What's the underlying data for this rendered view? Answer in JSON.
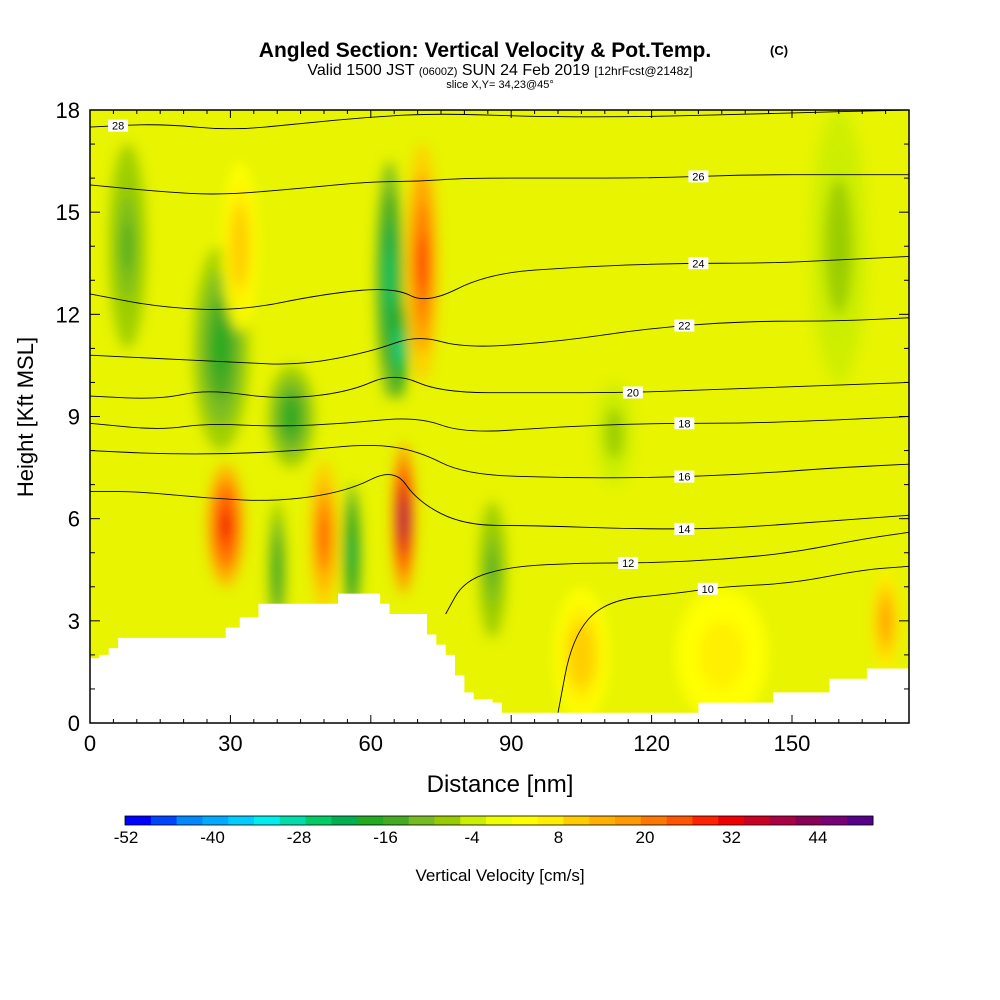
{
  "chart_data": {
    "type": "heatmap",
    "title": "Angled Section: Vertical Velocity & Pot.Temp.",
    "title_unit": "(C)",
    "subtitle": {
      "valid_prefix": "Valid 1500 JST",
      "utc": "(0600Z)",
      "date": "SUN 24 Feb 2019",
      "forecast": "[12hrFcst@2148z]",
      "slice": "slice X,Y= 34,23@45°"
    },
    "xlabel": "Distance [nm]",
    "ylabel": "Height [Kft MSL]",
    "xlim": [
      0,
      175
    ],
    "ylim": [
      0,
      18
    ],
    "x_ticks": [
      0,
      30,
      60,
      90,
      120,
      150
    ],
    "y_ticks": [
      0,
      3,
      6,
      9,
      12,
      15,
      18
    ],
    "colorbar": {
      "label": "Vertical Velocity [cm/s]",
      "tick_labels": [
        -52,
        -40,
        -28,
        -16,
        -4,
        8,
        20,
        32,
        44
      ],
      "colors": [
        "#0000ff",
        "#0044ff",
        "#0088ff",
        "#00aaff",
        "#00ccff",
        "#00eeee",
        "#00ddaa",
        "#00cc66",
        "#00b050",
        "#22aa22",
        "#44aa22",
        "#77bb22",
        "#99cc00",
        "#ccee00",
        "#eeff00",
        "#ffff00",
        "#ffee00",
        "#ffcc00",
        "#ffb000",
        "#ff9900",
        "#ff7700",
        "#ff5500",
        "#ff2200",
        "#ee0000",
        "#cc0022",
        "#aa0044",
        "#880055",
        "#770077",
        "#550088"
      ]
    },
    "terrain_profile": [
      [
        0,
        1.9
      ],
      [
        2,
        2
      ],
      [
        4,
        2.2
      ],
      [
        6,
        2.5
      ],
      [
        24,
        2.5
      ],
      [
        29,
        2.8
      ],
      [
        32,
        3.1
      ],
      [
        36,
        3.5
      ],
      [
        52,
        3.5
      ],
      [
        53,
        3.8
      ],
      [
        58,
        3.8
      ],
      [
        62,
        3.5
      ],
      [
        64,
        3.2
      ],
      [
        70,
        3.2
      ],
      [
        72,
        2.6
      ],
      [
        74,
        2.3
      ],
      [
        76,
        2
      ],
      [
        78,
        1.4
      ],
      [
        80,
        0.9
      ],
      [
        82,
        0.7
      ],
      [
        86,
        0.6
      ],
      [
        88,
        0.3
      ],
      [
        128,
        0.3
      ],
      [
        130,
        0.6
      ],
      [
        144,
        0.6
      ],
      [
        146,
        0.9
      ],
      [
        154,
        0.9
      ],
      [
        158,
        1.3
      ],
      [
        164,
        1.3
      ],
      [
        166,
        1.6
      ],
      [
        175,
        1.6
      ]
    ],
    "velocity_features": [
      {
        "x": 29,
        "y": 5.8,
        "sx": 4,
        "sy": 1.8,
        "value": 34
      },
      {
        "x": 50,
        "y": 5.5,
        "sx": 3,
        "sy": 2.2,
        "value": 26
      },
      {
        "x": 67,
        "y": 6.0,
        "sx": 2.5,
        "sy": 2.2,
        "value": 44
      },
      {
        "x": 71,
        "y": 13.5,
        "sx": 3.5,
        "sy": 3.5,
        "value": 28
      },
      {
        "x": 64,
        "y": 13.0,
        "sx": 3.0,
        "sy": 3.5,
        "value": -26
      },
      {
        "x": 66,
        "y": 11.0,
        "sx": 2.0,
        "sy": 1.5,
        "value": -30
      },
      {
        "x": 40,
        "y": 4.5,
        "sx": 2.0,
        "sy": 2.0,
        "value": -20
      },
      {
        "x": 56,
        "y": 5.0,
        "sx": 2.0,
        "sy": 2.0,
        "value": -22
      },
      {
        "x": 28,
        "y": 11.0,
        "sx": 6.0,
        "sy": 3.0,
        "value": -18
      },
      {
        "x": 43,
        "y": 9.0,
        "sx": 5.0,
        "sy": 1.5,
        "value": -18
      },
      {
        "x": 8,
        "y": 14.0,
        "sx": 4.0,
        "sy": 3.0,
        "value": -14
      },
      {
        "x": 86,
        "y": 4.5,
        "sx": 3.0,
        "sy": 2.0,
        "value": -14
      },
      {
        "x": 105,
        "y": 2.0,
        "sx": 6.0,
        "sy": 2.0,
        "value": 12
      },
      {
        "x": 135,
        "y": 2.0,
        "sx": 10.0,
        "sy": 2.0,
        "value": 8
      },
      {
        "x": 170,
        "y": 3.0,
        "sx": 3.0,
        "sy": 1.5,
        "value": 18
      },
      {
        "x": 160,
        "y": 14.0,
        "sx": 6.0,
        "sy": 4.0,
        "value": -8
      },
      {
        "x": 32,
        "y": 14.0,
        "sx": 4.0,
        "sy": 2.5,
        "value": 12
      },
      {
        "x": 112,
        "y": 8.5,
        "sx": 4.0,
        "sy": 1.5,
        "value": -8
      }
    ],
    "isentropes": [
      {
        "value": 10,
        "label": "10",
        "label_x": 132,
        "points": [
          [
            100,
            0.3
          ],
          [
            103,
            2.5
          ],
          [
            110,
            3.6
          ],
          [
            125,
            3.8
          ],
          [
            135,
            4.0
          ],
          [
            150,
            4.1
          ],
          [
            165,
            4.5
          ],
          [
            175,
            4.6
          ]
        ]
      },
      {
        "value": 12,
        "label": "12",
        "label_x": 115,
        "points": [
          [
            76,
            3.2
          ],
          [
            80,
            4.2
          ],
          [
            90,
            4.6
          ],
          [
            105,
            4.7
          ],
          [
            120,
            4.7
          ],
          [
            135,
            4.8
          ],
          [
            150,
            5.0
          ],
          [
            165,
            5.4
          ],
          [
            175,
            5.6
          ]
        ]
      },
      {
        "value": 14,
        "label": "14",
        "label_x": 127,
        "points": [
          [
            0,
            6.8
          ],
          [
            10,
            6.8
          ],
          [
            25,
            6.6
          ],
          [
            40,
            6.5
          ],
          [
            55,
            6.8
          ],
          [
            65,
            7.5
          ],
          [
            70,
            6.5
          ],
          [
            80,
            5.8
          ],
          [
            95,
            5.8
          ],
          [
            115,
            5.7
          ],
          [
            135,
            5.7
          ],
          [
            155,
            5.9
          ],
          [
            175,
            6.1
          ]
        ]
      },
      {
        "value": 16,
        "label": "16",
        "label_x": 127,
        "points": [
          [
            0,
            8.0
          ],
          [
            15,
            7.9
          ],
          [
            30,
            7.9
          ],
          [
            45,
            8.0
          ],
          [
            60,
            8.2
          ],
          [
            70,
            8.0
          ],
          [
            80,
            7.3
          ],
          [
            100,
            7.2
          ],
          [
            120,
            7.2
          ],
          [
            140,
            7.3
          ],
          [
            160,
            7.5
          ],
          [
            175,
            7.6
          ]
        ]
      },
      {
        "value": 18,
        "label": "18",
        "label_x": 127,
        "points": [
          [
            0,
            8.8
          ],
          [
            15,
            8.6
          ],
          [
            25,
            8.8
          ],
          [
            40,
            8.7
          ],
          [
            55,
            8.8
          ],
          [
            70,
            9.0
          ],
          [
            80,
            8.5
          ],
          [
            100,
            8.7
          ],
          [
            120,
            8.8
          ],
          [
            140,
            8.8
          ],
          [
            160,
            8.9
          ],
          [
            175,
            9.0
          ]
        ]
      },
      {
        "value": 20,
        "label": "20",
        "label_x": 116,
        "points": [
          [
            0,
            9.6
          ],
          [
            15,
            9.5
          ],
          [
            25,
            9.8
          ],
          [
            40,
            9.5
          ],
          [
            55,
            9.7
          ],
          [
            65,
            10.3
          ],
          [
            75,
            9.7
          ],
          [
            95,
            9.7
          ],
          [
            115,
            9.7
          ],
          [
            135,
            9.8
          ],
          [
            155,
            9.9
          ],
          [
            175,
            10.0
          ]
        ]
      },
      {
        "value": 22,
        "label": "22",
        "label_x": 127,
        "points": [
          [
            0,
            10.8
          ],
          [
            15,
            10.7
          ],
          [
            30,
            10.6
          ],
          [
            45,
            10.5
          ],
          [
            60,
            10.9
          ],
          [
            70,
            11.4
          ],
          [
            80,
            11.0
          ],
          [
            100,
            11.2
          ],
          [
            120,
            11.6
          ],
          [
            140,
            11.8
          ],
          [
            160,
            11.8
          ],
          [
            175,
            11.9
          ]
        ]
      },
      {
        "value": 24,
        "label": "24",
        "label_x": 130,
        "points": [
          [
            0,
            12.6
          ],
          [
            15,
            12.2
          ],
          [
            32,
            12.1
          ],
          [
            50,
            12.6
          ],
          [
            65,
            12.8
          ],
          [
            72,
            12.3
          ],
          [
            85,
            13.2
          ],
          [
            105,
            13.4
          ],
          [
            125,
            13.5
          ],
          [
            145,
            13.5
          ],
          [
            160,
            13.6
          ],
          [
            175,
            13.7
          ]
        ]
      },
      {
        "value": 26,
        "label": "26",
        "label_x": 130,
        "points": [
          [
            0,
            15.8
          ],
          [
            15,
            15.6
          ],
          [
            28,
            15.5
          ],
          [
            45,
            15.7
          ],
          [
            60,
            15.9
          ],
          [
            70,
            15.9
          ],
          [
            80,
            16.0
          ],
          [
            100,
            16.0
          ],
          [
            120,
            16.0
          ],
          [
            140,
            16.1
          ],
          [
            160,
            16.1
          ],
          [
            175,
            16.1
          ]
        ]
      },
      {
        "value": 28,
        "label": "28",
        "label_x": 6,
        "points": [
          [
            0,
            17.5
          ],
          [
            15,
            17.6
          ],
          [
            30,
            17.4
          ],
          [
            45,
            17.6
          ],
          [
            60,
            17.8
          ],
          [
            75,
            17.9
          ],
          [
            95,
            17.8
          ],
          [
            120,
            17.8
          ],
          [
            145,
            17.9
          ],
          [
            175,
            18.0
          ]
        ]
      }
    ]
  }
}
